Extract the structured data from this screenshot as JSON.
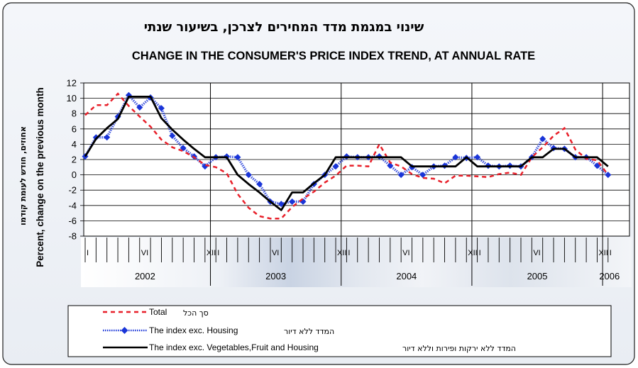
{
  "chart_data": {
    "type": "line",
    "title_he": "שינוי במגמת מדד המחירים לצרכן, בשיעור שנתי",
    "title": "CHANGE IN THE CONSUMER'S PRICE INDEX TREND, AT ANNUAL RATE",
    "ylabel_he": "אחוזים, חודש לעומת קודמו",
    "ylabel": "Percent, change on the previous month",
    "ylim": [
      -8,
      12
    ],
    "yticks": [
      "12",
      "10",
      "8",
      "6",
      "4",
      "2",
      "0",
      "-2",
      "-4",
      "-6",
      "-8"
    ],
    "month_labels": [
      {
        "label": "I",
        "index": 0
      },
      {
        "label": "VI",
        "index": 5
      },
      {
        "label": "XII",
        "index": 11
      },
      {
        "label": "I",
        "index": 12
      },
      {
        "label": "VI",
        "index": 17
      },
      {
        "label": "XII",
        "index": 23
      },
      {
        "label": "I",
        "index": 24
      },
      {
        "label": "VI",
        "index": 29
      },
      {
        "label": "XII",
        "index": 35
      },
      {
        "label": "I",
        "index": 36
      },
      {
        "label": "VI",
        "index": 41
      },
      {
        "label": "XII",
        "index": 47
      },
      {
        "label": "I",
        "index": 48
      }
    ],
    "years": [
      "2002",
      "2003",
      "2004",
      "2005",
      "2006"
    ],
    "series": [
      {
        "name": "Total",
        "name_he": "סך הכל",
        "color": "#e8202a",
        "style": "dashed",
        "values": [
          7.8,
          9.1,
          9.1,
          10.6,
          9.0,
          7.6,
          6.3,
          4.6,
          3.6,
          3.1,
          2.3,
          1.3,
          1.0,
          0.2,
          -2.5,
          -4.3,
          -5.4,
          -5.7,
          -5.7,
          -4.2,
          -3.1,
          -2.2,
          -1.0,
          -0.1,
          1.2,
          1.2,
          1.1,
          4.0,
          1.6,
          1.1,
          0.1,
          -0.4,
          -0.5,
          -1.1,
          -0.1,
          -0.1,
          -0.2,
          -0.3,
          0.1,
          0.3,
          0.0,
          2.3,
          3.6,
          5.1,
          6.1,
          3.3,
          2.1,
          1.9,
          0.0
        ]
      },
      {
        "name": "The index exc. Housing",
        "name_he": "המדד ללא דיור",
        "color": "#1a35d8",
        "style": "dotted-markers",
        "values": [
          2.4,
          4.9,
          4.9,
          7.6,
          10.4,
          8.8,
          10.1,
          8.7,
          5.1,
          3.5,
          2.4,
          1.1,
          2.3,
          2.4,
          2.3,
          0.0,
          -1.2,
          -3.5,
          -3.8,
          -3.5,
          -3.5,
          -1.2,
          0.0,
          1.1,
          2.4,
          2.3,
          2.3,
          2.4,
          1.2,
          0.0,
          1.0,
          0.0,
          1.1,
          1.2,
          2.3,
          2.2,
          2.3,
          1.2,
          1.1,
          1.2,
          1.1,
          2.3,
          4.7,
          3.5,
          3.4,
          2.3,
          2.3,
          1.2,
          0.0
        ]
      },
      {
        "name": "The index exc. Vegetables,Fruit and Housing",
        "name_he": "המדד ללא ירקות ופירות וללא דיור",
        "color": "#000000",
        "style": "solid",
        "values": [
          2.4,
          4.7,
          6.1,
          7.3,
          10.2,
          10.2,
          10.2,
          7.4,
          5.9,
          4.6,
          3.4,
          2.3,
          2.3,
          2.3,
          0.0,
          -1.2,
          -2.3,
          -3.5,
          -4.6,
          -2.3,
          -2.3,
          -1.1,
          0.0,
          2.3,
          2.3,
          2.3,
          2.3,
          2.3,
          2.3,
          2.3,
          1.1,
          1.1,
          1.1,
          1.1,
          1.1,
          2.3,
          1.1,
          1.1,
          1.1,
          1.1,
          1.1,
          2.3,
          2.3,
          3.4,
          3.4,
          2.3,
          2.3,
          2.3,
          1.1
        ]
      }
    ]
  }
}
